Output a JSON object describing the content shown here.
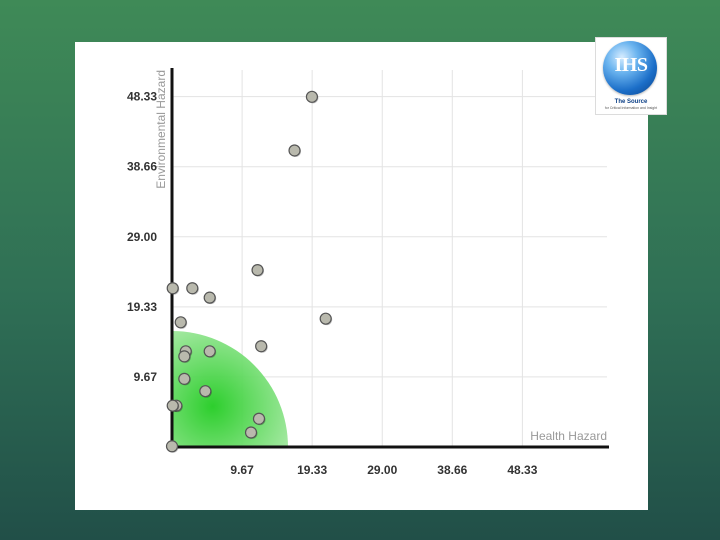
{
  "logo": {
    "text": "IHS",
    "tagline": "The Source",
    "subline": "for Critical Information and Insight",
    "icon": "ihs-globe-logo"
  },
  "colors": {
    "axis": "#111111",
    "grid": "#e3e3e3",
    "point_fill": "#b9b9ad",
    "point_stroke": "#555555",
    "zone_center": "#22cc22",
    "zone_edge": "#c8f0c4",
    "label": "#333333",
    "axis_title": "#999999"
  },
  "chart_data": {
    "type": "scatter",
    "xlabel": "Health Hazard",
    "ylabel": "Environmental Hazard",
    "xlim": [
      0,
      60
    ],
    "ylim": [
      0,
      52
    ],
    "x_ticks": [
      9.67,
      19.33,
      29.0,
      38.66,
      48.33
    ],
    "x_tick_labels": [
      "9.67",
      "19.33",
      "29.00",
      "38.66",
      "48.33"
    ],
    "y_ticks": [
      9.67,
      19.33,
      29.0,
      38.66,
      48.33
    ],
    "y_tick_labels": [
      "9.67",
      "19.33",
      "29.00",
      "38.66",
      "48.33"
    ],
    "grid": true,
    "highlight_region": {
      "shape": "quarter-circle",
      "radius": 16,
      "center": [
        0,
        0
      ]
    },
    "points": [
      {
        "x": 19.3,
        "y": 48.3
      },
      {
        "x": 16.9,
        "y": 40.9
      },
      {
        "x": 11.8,
        "y": 24.4
      },
      {
        "x": 0.1,
        "y": 21.9
      },
      {
        "x": 2.8,
        "y": 21.9
      },
      {
        "x": 5.2,
        "y": 20.6
      },
      {
        "x": 21.2,
        "y": 17.7
      },
      {
        "x": 1.2,
        "y": 17.2
      },
      {
        "x": 12.3,
        "y": 13.9
      },
      {
        "x": 1.9,
        "y": 13.2
      },
      {
        "x": 5.2,
        "y": 13.2
      },
      {
        "x": 1.7,
        "y": 12.5
      },
      {
        "x": 1.7,
        "y": 9.4
      },
      {
        "x": 4.6,
        "y": 7.7
      },
      {
        "x": 0.6,
        "y": 5.7
      },
      {
        "x": 0.1,
        "y": 5.7
      },
      {
        "x": 12.0,
        "y": 3.9
      },
      {
        "x": 10.9,
        "y": 2.0
      },
      {
        "x": 0.0,
        "y": 0.1
      }
    ]
  }
}
